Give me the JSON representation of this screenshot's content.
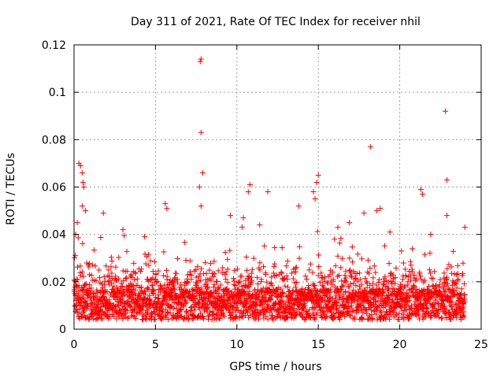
{
  "chart_data": {
    "type": "scatter",
    "title": "Day 311 of 2021, Rate Of TEC Index for receiver nhil",
    "xlabel": "GPS time / hours",
    "ylabel": "ROTI / TECUs",
    "xlim": [
      0,
      25
    ],
    "ylim": [
      0,
      0.12
    ],
    "x_ticks": [
      0,
      5,
      10,
      15,
      20,
      25
    ],
    "y_ticks": [
      0,
      0.02,
      0.04,
      0.06,
      0.08,
      0.1,
      0.12
    ],
    "x_tick_labels": [
      "0",
      "5",
      "10",
      "15",
      "20",
      "25"
    ],
    "y_tick_labels": [
      "0",
      "0.02",
      "0.04",
      "0.06",
      "0.08",
      "0.1",
      "0.12"
    ],
    "grid": true,
    "marker": "+",
    "marker_color": "#ff0000",
    "data_range_hours": [
      0,
      24
    ],
    "series": [
      {
        "name": "ROTI",
        "points": [
          [
            7.8,
            0.114
          ],
          [
            7.75,
            0.113
          ],
          [
            7.8,
            0.083
          ],
          [
            7.9,
            0.066
          ],
          [
            22.8,
            0.092
          ],
          [
            18.2,
            0.077
          ],
          [
            22.9,
            0.063
          ],
          [
            0.3,
            0.07
          ],
          [
            0.4,
            0.069
          ],
          [
            0.5,
            0.066
          ],
          [
            0.55,
            0.062
          ],
          [
            0.6,
            0.06
          ],
          [
            10.8,
            0.061
          ],
          [
            10.7,
            0.058
          ],
          [
            11.9,
            0.058
          ],
          [
            15.0,
            0.065
          ],
          [
            14.9,
            0.062
          ],
          [
            14.7,
            0.058
          ],
          [
            14.8,
            0.055
          ],
          [
            21.3,
            0.059
          ],
          [
            21.4,
            0.057
          ],
          [
            13.8,
            0.052
          ],
          [
            18.8,
            0.051
          ],
          [
            18.6,
            0.05
          ],
          [
            17.8,
            0.049
          ],
          [
            22.9,
            0.048
          ],
          [
            24.0,
            0.043
          ],
          [
            1.8,
            0.049
          ],
          [
            5.6,
            0.053
          ],
          [
            5.7,
            0.051
          ],
          [
            7.7,
            0.06
          ],
          [
            7.8,
            0.052
          ],
          [
            9.6,
            0.048
          ],
          [
            10.4,
            0.047
          ],
          [
            11.4,
            0.044
          ],
          [
            0.1,
            0.04
          ],
          [
            0.2,
            0.045
          ],
          [
            0.5,
            0.052
          ],
          [
            0.7,
            0.05
          ],
          [
            3.0,
            0.042
          ],
          [
            16.2,
            0.043
          ],
          [
            16.9,
            0.045
          ],
          [
            19.4,
            0.041
          ],
          [
            20.1,
            0.033
          ],
          [
            21.9,
            0.04
          ]
        ]
      }
    ]
  }
}
